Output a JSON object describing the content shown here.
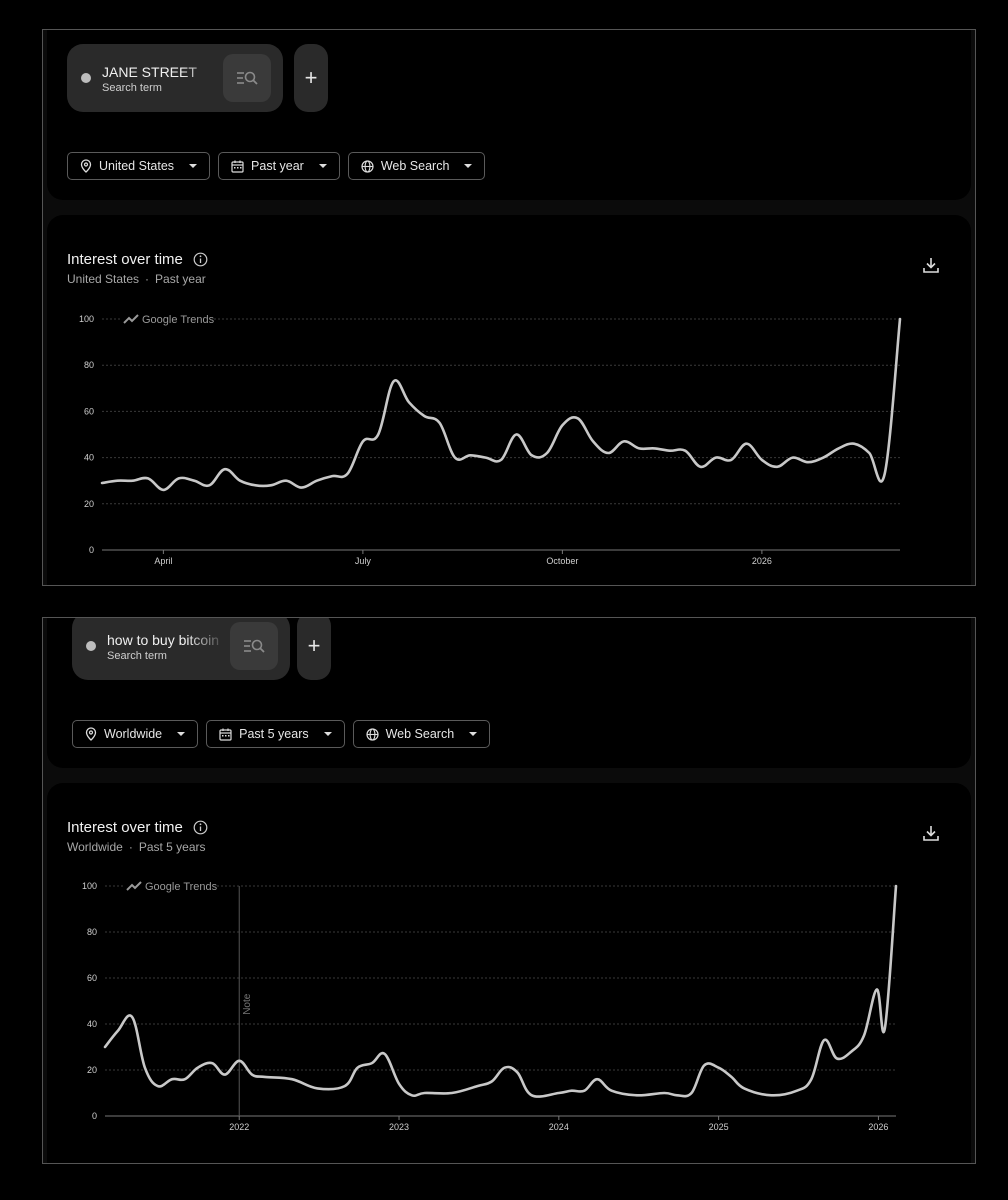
{
  "panels": [
    {
      "term": "JANE STREET",
      "term_sub": "Search term",
      "add_label": "+",
      "filters": {
        "location": "United States",
        "period": "Past year",
        "property": "Web Search"
      },
      "chart_title": "Interest over time",
      "chart_sub_location": "United States",
      "chart_sub_separator": "·",
      "chart_sub_period": "Past year",
      "brand": "Google Trends",
      "chart_data": {
        "type": "line",
        "ylim": [
          0,
          100
        ],
        "yticks": [
          0,
          20,
          40,
          60,
          80,
          100
        ],
        "xlim": [
          0,
          52
        ],
        "xticks": [
          {
            "x": 4,
            "label": "April"
          },
          {
            "x": 17,
            "label": "July"
          },
          {
            "x": 30,
            "label": "October"
          },
          {
            "x": 43,
            "label": "2026"
          }
        ],
        "grid": true,
        "series": [
          {
            "values": [
              29,
              30,
              30,
              31,
              26,
              31,
              30,
              28,
              35,
              30,
              28,
              28,
              30,
              27,
              30,
              32,
              33,
              47,
              50,
              73,
              64,
              58,
              55,
              40,
              41,
              40,
              39,
              50,
              41,
              42,
              54,
              57,
              47,
              42,
              47,
              44,
              44,
              43,
              43,
              36,
              40,
              39,
              46,
              39,
              36,
              40,
              38,
              40,
              44,
              46,
              42,
              33,
              100
            ]
          }
        ]
      }
    },
    {
      "term": "how to buy bitcoin",
      "term_sub": "Search term",
      "add_label": "+",
      "filters": {
        "location": "Worldwide",
        "period": "Past 5 years",
        "property": "Web Search"
      },
      "chart_title": "Interest over time",
      "chart_sub_location": "Worldwide",
      "chart_sub_separator": "·",
      "chart_sub_period": "Past 5 years",
      "brand": "Google Trends",
      "note_label": "Note",
      "note_x": 0.84,
      "chart_data": {
        "type": "line",
        "ylim": [
          0,
          100
        ],
        "yticks": [
          0,
          20,
          40,
          60,
          80,
          100
        ],
        "xlim": [
          0,
          4.95
        ],
        "xticks": [
          {
            "x": 0.84,
            "label": "2022"
          },
          {
            "x": 1.84,
            "label": "2023"
          },
          {
            "x": 2.84,
            "label": "2024"
          },
          {
            "x": 3.84,
            "label": "2025"
          },
          {
            "x": 4.84,
            "label": "2026"
          }
        ],
        "grid": true,
        "series": [
          {
            "x": [
              0,
              0.08,
              0.17,
              0.25,
              0.33,
              0.42,
              0.5,
              0.58,
              0.67,
              0.75,
              0.84,
              0.92,
              1.0,
              1.17,
              1.33,
              1.5,
              1.58,
              1.67,
              1.75,
              1.84,
              1.92,
              2.0,
              2.17,
              2.33,
              2.42,
              2.5,
              2.58,
              2.67,
              2.84,
              2.92,
              3.0,
              3.08,
              3.17,
              3.33,
              3.5,
              3.58,
              3.67,
              3.75,
              3.84,
              3.92,
              4.0,
              4.17,
              4.33,
              4.42,
              4.5,
              4.58,
              4.67,
              4.75,
              4.83,
              4.88,
              4.95
            ],
            "values": [
              30,
              37,
              43,
              21,
              13,
              16,
              16,
              21,
              23,
              18,
              24,
              18,
              17,
              16,
              12,
              13,
              21,
              23,
              27,
              14,
              9,
              10,
              10,
              13,
              15,
              21,
              19,
              9,
              10,
              11,
              11,
              16,
              11,
              9,
              10,
              9,
              10,
              22,
              21,
              17,
              12,
              9,
              11,
              16,
              33,
              25,
              28,
              35,
              55,
              38,
              100
            ]
          }
        ]
      }
    }
  ]
}
